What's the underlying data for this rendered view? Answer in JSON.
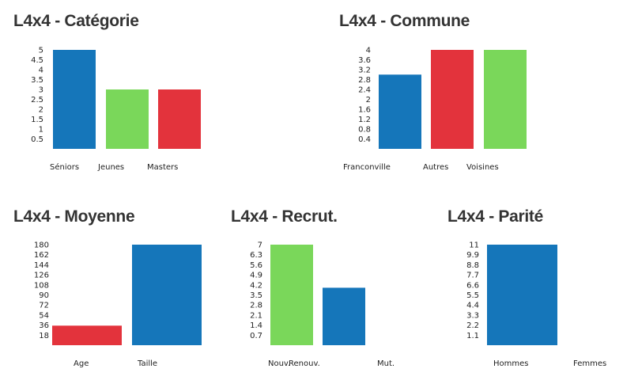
{
  "colors": {
    "blue": "#1576BA",
    "green": "#7AD75A",
    "red": "#E3333C"
  },
  "chart_data": [
    {
      "type": "bar",
      "title": "L4x4 - Catégorie",
      "categories": [
        "Séniors",
        "Jeunes",
        "Masters"
      ],
      "values": [
        5,
        3,
        3
      ],
      "bar_colors": [
        "blue",
        "green",
        "red"
      ],
      "ylim": [
        0,
        5
      ],
      "yticks": [
        "0.5",
        "1",
        "1.5",
        "2",
        "2.5",
        "3",
        "3.5",
        "4",
        "4.5",
        "5"
      ]
    },
    {
      "type": "bar",
      "title": "L4x4 - Commune",
      "categories": [
        "Franconville",
        "Autres",
        "Voisines"
      ],
      "values": [
        3,
        4,
        4
      ],
      "bar_colors": [
        "blue",
        "red",
        "green"
      ],
      "ylim": [
        0,
        4
      ],
      "yticks": [
        "0.4",
        "0.8",
        "1.2",
        "1.6",
        "2",
        "2.4",
        "2.8",
        "3.2",
        "3.6",
        "4"
      ]
    },
    {
      "type": "bar",
      "title": "L4x4 - Moyenne",
      "categories": [
        "Age",
        "Taille"
      ],
      "values": [
        35,
        180
      ],
      "bar_colors": [
        "red",
        "blue"
      ],
      "ylim": [
        0,
        180
      ],
      "yticks": [
        "18",
        "36",
        "54",
        "72",
        "90",
        "108",
        "126",
        "144",
        "162",
        "180"
      ]
    },
    {
      "type": "bar",
      "title": "L4x4 - Recrut.",
      "categories": [
        "Nouv.",
        "Renouv.",
        "Mut."
      ],
      "values": [
        7,
        4,
        0
      ],
      "bar_colors": [
        "green",
        "blue",
        "red"
      ],
      "ylim": [
        0,
        7
      ],
      "yticks": [
        "0.7",
        "1.4",
        "2.1",
        "2.8",
        "3.5",
        "4.2",
        "4.9",
        "5.6",
        "6.3",
        "7"
      ]
    },
    {
      "type": "bar",
      "title": "L4x4 - Parité",
      "categories": [
        "Hommes",
        "Femmes"
      ],
      "values": [
        11,
        0
      ],
      "bar_colors": [
        "blue",
        "red"
      ],
      "ylim": [
        0,
        11
      ],
      "yticks": [
        "1.1",
        "2.2",
        "3.3",
        "4.4",
        "5.5",
        "6.6",
        "7.7",
        "8.8",
        "9.9",
        "11"
      ]
    }
  ]
}
